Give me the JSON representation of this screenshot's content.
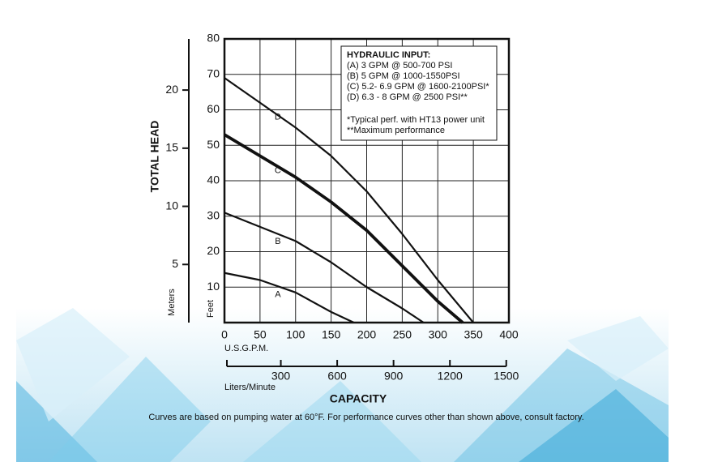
{
  "chart_data": {
    "type": "line",
    "y_label": "TOTAL HEAD",
    "y_unit_label": "Feet",
    "y2_label": "Meters",
    "x_unit_label": "U.S.G.P.M.",
    "x2_label": "Liters/Minute",
    "x_label": "CAPACITY",
    "note": "Curves are based on pumping water at 60°F. For performance curves other than shown above, consult factory.",
    "legend_box": {
      "title": "HYDRAULIC INPUT:",
      "lines": [
        "(A) 3 GPM @ 500-700 PSI",
        "(B) 5 GPM @ 1000-1550PSI",
        "(C) 5.2- 6.9 GPM @ 1600-2100PSI*",
        "(D) 6.3 - 8 GPM @ 2500 PSI**"
      ],
      "footnotes": [
        "*Typical perf. with HT13 power unit",
        "**Maximum performance"
      ]
    },
    "xlim": [
      0,
      400
    ],
    "xticks": [
      0,
      50,
      100,
      150,
      200,
      250,
      300,
      350,
      400
    ],
    "ylim": [
      0,
      80
    ],
    "yticks": [
      10,
      20,
      30,
      40,
      50,
      60,
      70,
      80
    ],
    "y2lim": [
      0,
      24.4
    ],
    "y2ticks": [
      5,
      10,
      15,
      20
    ],
    "x2lim": [
      0,
      1514
    ],
    "x2ticks": [
      300,
      600,
      900,
      1200,
      1500
    ],
    "grid": true,
    "series": [
      {
        "name": "A",
        "color": "#111111",
        "line_width": 2.2,
        "x": [
          0,
          50,
          100,
          150,
          182
        ],
        "values": [
          14,
          12,
          8.5,
          3,
          0
        ]
      },
      {
        "name": "B",
        "color": "#111111",
        "line_width": 2.2,
        "x": [
          0,
          50,
          100,
          150,
          200,
          250,
          280
        ],
        "values": [
          31,
          27,
          23,
          17,
          10,
          4,
          0
        ]
      },
      {
        "name": "C",
        "color": "#111111",
        "line_width": 3.8,
        "x": [
          0,
          50,
          100,
          150,
          200,
          250,
          300,
          335
        ],
        "values": [
          53,
          47,
          41,
          34,
          26,
          16,
          6,
          0
        ]
      },
      {
        "name": "D",
        "color": "#111111",
        "line_width": 2.2,
        "x": [
          0,
          50,
          100,
          150,
          200,
          250,
          300,
          350
        ],
        "values": [
          69,
          62,
          55,
          47,
          37,
          25,
          12,
          0
        ]
      }
    ]
  }
}
